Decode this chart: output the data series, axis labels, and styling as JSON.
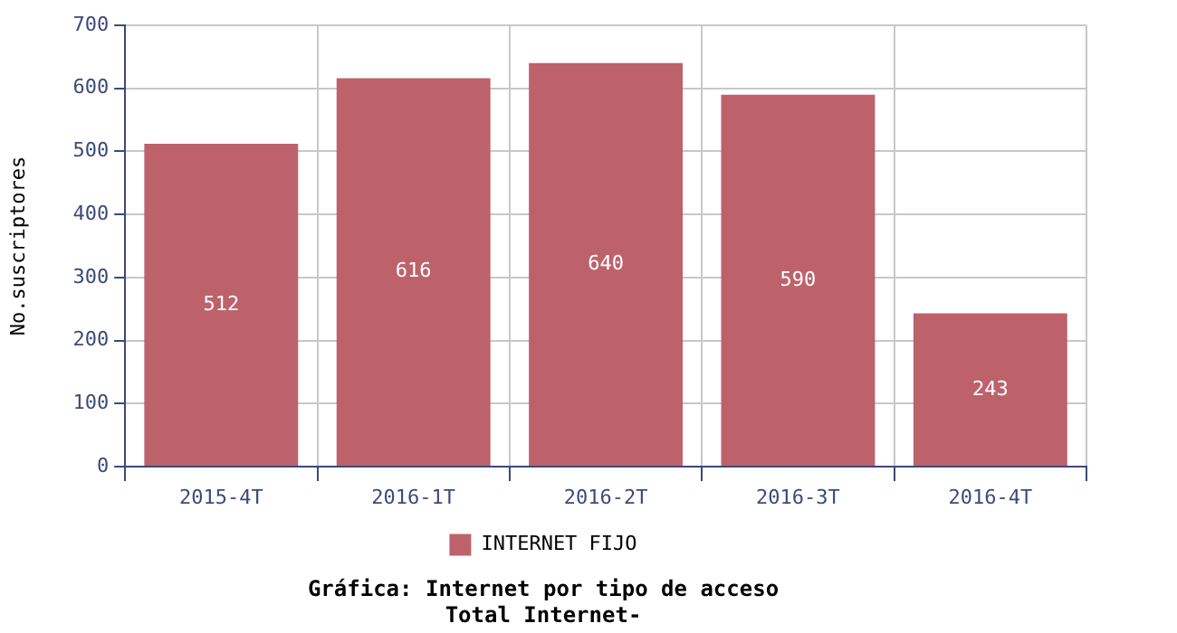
{
  "chart_data": {
    "type": "bar",
    "title": "Gráfica: Internet por tipo de acceso",
    "subtitle": "Total Internet-",
    "ylabel": "No.suscriptores",
    "categories": [
      "2015-4T",
      "2016-1T",
      "2016-2T",
      "2016-3T",
      "2016-4T"
    ],
    "series": [
      {
        "name": "INTERNET FIJO",
        "color": "#bd626b",
        "values": [
          512,
          616,
          640,
          590,
          243
        ]
      }
    ],
    "ylim": [
      0,
      700
    ],
    "yticks": [
      0,
      100,
      200,
      300,
      400,
      500,
      600,
      700
    ],
    "grid": true,
    "legend": "bottom",
    "data_labels": true
  }
}
